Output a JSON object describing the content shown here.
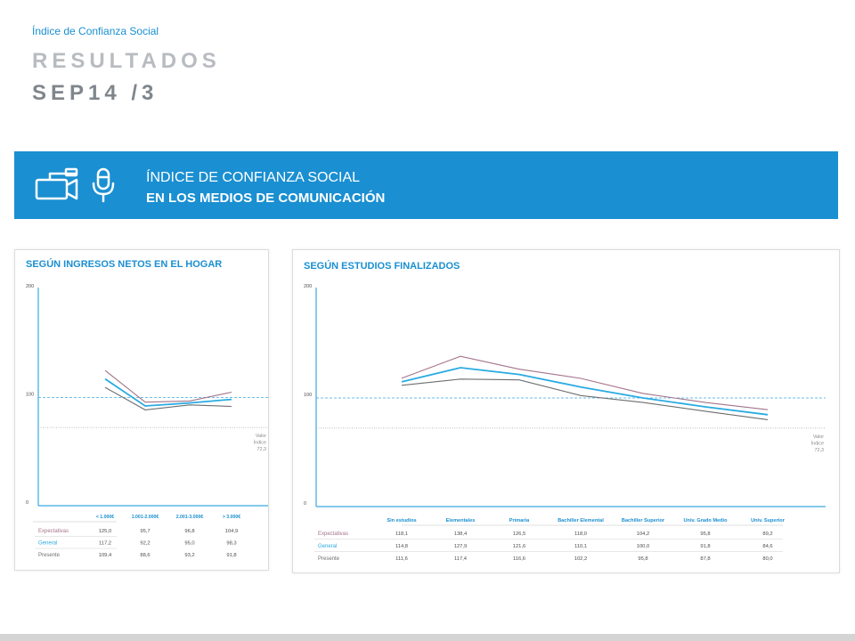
{
  "header": {
    "pretitle": "Índice de Confianza Social",
    "title_line1": "RESULTADOS",
    "title_line2": "SEP14 /3"
  },
  "banner": {
    "line1": "ÍNDICE DE CONFIANZA SOCIAL",
    "line2": "EN LOS MEDIOS DE COMUNICACIÓN",
    "icons": [
      "video-camera-icon",
      "microphone-icon"
    ],
    "color": "#1a8fd1"
  },
  "chart_data": [
    {
      "type": "line",
      "title": "SEGÚN  INGRESOS NETOS EN EL HOGAR",
      "categories": [
        "< 1.000€",
        "1.001-2.000€",
        "2.001-3.000€",
        "> 3.000€"
      ],
      "ylim": [
        0,
        200
      ],
      "yticks": [
        "0",
        "100",
        "200"
      ],
      "reference_lines": [
        {
          "value": 100,
          "style": "dashed",
          "color": "#3aa9e0"
        },
        {
          "value": 72.3,
          "style": "dotted",
          "color": "#b5b5b5",
          "label": [
            "Valor",
            "Índice",
            "72,3"
          ]
        }
      ],
      "series": [
        {
          "name": "Expectativas",
          "color": "#a3738a",
          "values": [
            125.0,
            95.7,
            96.8,
            104.9
          ],
          "labels": [
            "125,0",
            "95,7",
            "96,8",
            "104,9"
          ]
        },
        {
          "name": "General",
          "color": "#29abe2",
          "values": [
            117.2,
            92.2,
            95.0,
            98.3
          ],
          "labels": [
            "117,2",
            "92,2",
            "95,0",
            "98,3"
          ]
        },
        {
          "name": "Presente",
          "color": "#6d6e71",
          "values": [
            109.4,
            88.6,
            93.2,
            91.8
          ],
          "labels": [
            "109,4",
            "88,6",
            "93,2",
            "91,8"
          ]
        }
      ]
    },
    {
      "type": "line",
      "title": "SEGÚN  ESTUDIOS FINALIZADOS",
      "categories": [
        "Sin estudios",
        "Elementales",
        "Primaria",
        "Bachiller Elemental",
        "Bachiller Superior",
        "Univ. Grado Medio",
        "Univ. Superior"
      ],
      "ylim": [
        0,
        200
      ],
      "yticks": [
        "0",
        "100",
        "200"
      ],
      "reference_lines": [
        {
          "value": 100,
          "style": "dashed",
          "color": "#3aa9e0"
        },
        {
          "value": 72.3,
          "style": "dotted",
          "color": "#b5b5b5",
          "label": [
            "Valor",
            "Índice",
            "72,3"
          ]
        }
      ],
      "series": [
        {
          "name": "Expectativas",
          "color": "#a3738a",
          "values": [
            118.1,
            138.4,
            126.5,
            118.0,
            104.2,
            95.8,
            89.2
          ],
          "labels": [
            "118,1",
            "138,4",
            "126,5",
            "118,0",
            "104,2",
            "95,8",
            "89,2"
          ]
        },
        {
          "name": "General",
          "color": "#29abe2",
          "values": [
            114.8,
            127.9,
            121.6,
            110.1,
            100.0,
            91.8,
            84.6
          ],
          "labels": [
            "114,8",
            "127,9",
            "121,6",
            "110,1",
            "100,0",
            "91,8",
            "84,6"
          ]
        },
        {
          "name": "Presente",
          "color": "#6d6e71",
          "values": [
            111.6,
            117.4,
            116.6,
            102.2,
            95.8,
            87.8,
            80.0
          ],
          "labels": [
            "111,6",
            "117,4",
            "116,6",
            "102,2",
            "95,8",
            "87,8",
            "80,0"
          ]
        }
      ]
    }
  ]
}
